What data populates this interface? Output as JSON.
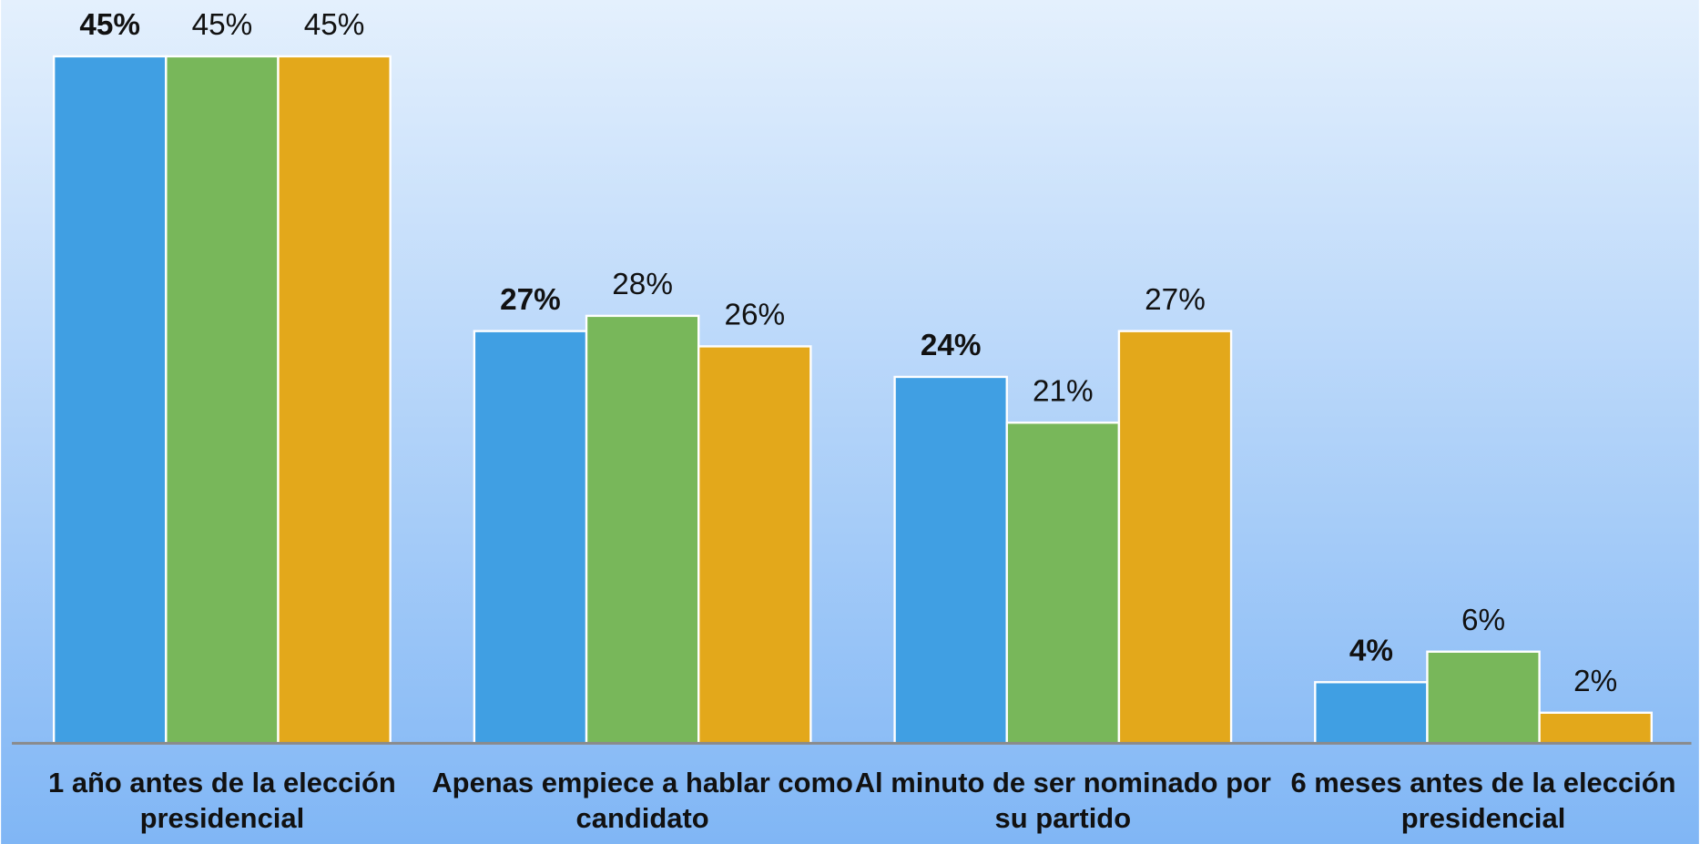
{
  "chart_data": {
    "type": "bar",
    "categories": [
      "1 año antes de la elección presidencial",
      "Apenas empiece a hablar como candidato",
      "Al minuto de ser nominado por su partido",
      "6 meses antes de la elección presidencial"
    ],
    "series": [
      {
        "color": "#409fe3",
        "bold": true,
        "values": [
          45,
          27,
          24,
          4
        ],
        "value_labels": [
          "45%",
          "27%",
          "24%",
          "4%"
        ]
      },
      {
        "color": "#78b75a",
        "bold": false,
        "values": [
          45,
          28,
          21,
          6
        ],
        "value_labels": [
          "45%",
          "28%",
          "21%",
          "6%"
        ]
      },
      {
        "color": "#e3a81b",
        "bold": false,
        "values": [
          45,
          26,
          27,
          2
        ],
        "value_labels": [
          "45%",
          "26%",
          "27%",
          "2%"
        ]
      }
    ],
    "ylim": [
      0,
      45
    ]
  }
}
